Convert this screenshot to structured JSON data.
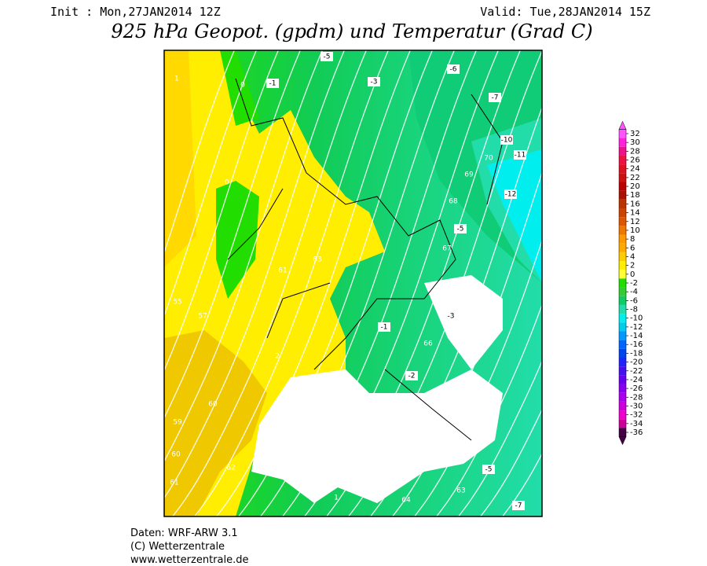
{
  "header": {
    "init": "Init : Mon,27JAN2014 12Z",
    "valid": "Valid: Tue,28JAN2014 15Z",
    "title": "925 hPa Geopot. (gpdm) und Temperatur (Grad C)"
  },
  "legend": {
    "labels": [
      32,
      30,
      28,
      26,
      24,
      22,
      20,
      18,
      16,
      14,
      12,
      10,
      8,
      6,
      4,
      2,
      0,
      -2,
      -4,
      -6,
      -8,
      -10,
      -12,
      -14,
      -16,
      -18,
      -20,
      -22,
      -24,
      -26,
      -28,
      -30,
      -32,
      -34,
      -36
    ],
    "colors": [
      "#ff55ff",
      "#ff22dd",
      "#ee1188",
      "#ee1144",
      "#dd1122",
      "#cc1111",
      "#bb0000",
      "#aa1100",
      "#bb3300",
      "#cc4400",
      "#dd5500",
      "#ee7700",
      "#ff9900",
      "#ffaa00",
      "#ffcc00",
      "#ffee00",
      "#ffff33",
      "#22dd00",
      "#33cc33",
      "#11cc66",
      "#22ddaa",
      "#00eeee",
      "#00ccee",
      "#0099ff",
      "#0066ff",
      "#0044ee",
      "#2222ff",
      "#4411ee",
      "#6600ee",
      "#8800ee",
      "#aa00ee",
      "#cc00dd",
      "#ee00cc",
      "#cc0099",
      "#440044"
    ]
  },
  "map": {
    "labels": [
      "1",
      "0",
      "-1",
      "-5",
      "-3",
      "-6",
      "-7",
      "-10",
      "-11",
      "70",
      "69",
      "68",
      "67",
      "-5",
      "-12",
      "0",
      "55",
      "57",
      "61",
      "63",
      "2",
      "-1",
      "-2",
      "-3",
      "66",
      "60",
      "62",
      "59",
      "60",
      "61",
      "64",
      "63",
      "1",
      "-7",
      "-5"
    ]
  },
  "footer": {
    "lines": [
      "Daten: WRF-ARW 3.1",
      "(C) Wetterzentrale",
      "www.wetterzentrale.de"
    ]
  }
}
